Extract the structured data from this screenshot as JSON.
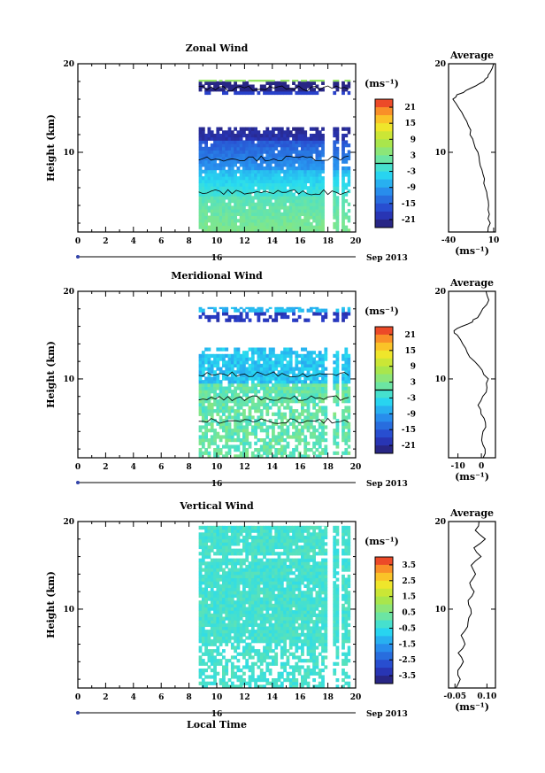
{
  "figure": {
    "date_label": "Sep 2013",
    "day_label": "16",
    "common_xlabel": "Local Time"
  },
  "chart_data": [
    {
      "type": "heatmap",
      "title": "Zonal Wind",
      "xlabel": "",
      "ylabel": "Height (km)",
      "xlim": [
        0,
        20
      ],
      "ylim": [
        1,
        20
      ],
      "xticks": [
        "0",
        "2",
        "4",
        "6",
        "8",
        "10",
        "12",
        "14",
        "16",
        "18",
        "20"
      ],
      "yticks": [
        "10",
        "20"
      ],
      "colorbar": {
        "label": "(ms⁻¹)",
        "ticks": [
          "21",
          "15",
          "9",
          "3",
          "-3",
          "-9",
          "-15",
          "-21"
        ],
        "range": [
          -24,
          24
        ],
        "contour_at": 0
      },
      "data_extent": {
        "x": [
          8.7,
          19.6
        ],
        "y": [
          1,
          18.2
        ]
      },
      "profile": {
        "title": "Average",
        "xlabel": "(ms⁻¹)",
        "xticks": [
          "-40",
          "10"
        ],
        "xlim": [
          -40,
          12
        ],
        "yticks": [
          "10",
          "20"
        ],
        "points": [
          [
            4,
            1
          ],
          [
            5,
            2
          ],
          [
            5,
            3
          ],
          [
            4,
            4
          ],
          [
            3,
            5
          ],
          [
            1,
            6
          ],
          [
            0,
            7
          ],
          [
            -2,
            8
          ],
          [
            -5,
            9
          ],
          [
            -8,
            10
          ],
          [
            -12,
            11
          ],
          [
            -15,
            12
          ],
          [
            -18,
            13
          ],
          [
            -22,
            14
          ],
          [
            -28,
            15
          ],
          [
            -36,
            16
          ],
          [
            -30,
            16.5
          ],
          [
            -20,
            17
          ],
          [
            -10,
            17.5
          ],
          [
            -2,
            18
          ],
          [
            3,
            18.5
          ],
          [
            7,
            19
          ],
          [
            10,
            20
          ]
        ]
      }
    },
    {
      "type": "heatmap",
      "title": "Meridional Wind",
      "xlabel": "",
      "ylabel": "Height (km)",
      "xlim": [
        0,
        20
      ],
      "ylim": [
        1,
        20
      ],
      "xticks": [
        "0",
        "2",
        "4",
        "6",
        "8",
        "10",
        "12",
        "14",
        "16",
        "18",
        "20"
      ],
      "yticks": [
        "10",
        "20"
      ],
      "colorbar": {
        "label": "(ms⁻¹)",
        "ticks": [
          "21",
          "15",
          "9",
          "3",
          "-3",
          "-9",
          "-15",
          "-21"
        ],
        "range": [
          -24,
          24
        ],
        "contour_at": 0
      },
      "data_extent": {
        "x": [
          8.7,
          19.6
        ],
        "y": [
          1,
          18.2
        ]
      },
      "profile": {
        "title": "Average",
        "xlabel": "(ms⁻¹)",
        "xticks": [
          "-10",
          "0"
        ],
        "xlim": [
          -14,
          6
        ],
        "yticks": [
          "10",
          "20"
        ],
        "points": [
          [
            1,
            1
          ],
          [
            2,
            2
          ],
          [
            0,
            3
          ],
          [
            1,
            4
          ],
          [
            2,
            5
          ],
          [
            0,
            6
          ],
          [
            -1,
            7
          ],
          [
            1,
            8
          ],
          [
            2,
            9
          ],
          [
            3,
            10
          ],
          [
            0,
            11
          ],
          [
            -3,
            12
          ],
          [
            -6,
            13
          ],
          [
            -8,
            14
          ],
          [
            -10,
            15
          ],
          [
            -12,
            15.5
          ],
          [
            -8,
            16
          ],
          [
            -4,
            16.5
          ],
          [
            -2,
            17
          ],
          [
            1,
            18
          ],
          [
            3,
            19
          ],
          [
            2,
            20
          ]
        ]
      }
    },
    {
      "type": "heatmap",
      "title": "Vertical Wind",
      "xlabel": "Local Time",
      "ylabel": "Height (km)",
      "xlim": [
        0,
        20
      ],
      "ylim": [
        1,
        20
      ],
      "xticks": [
        "0",
        "2",
        "4",
        "6",
        "8",
        "10",
        "12",
        "14",
        "16",
        "18",
        "20"
      ],
      "yticks": [
        "10",
        "20"
      ],
      "colorbar": {
        "label": "(ms⁻¹)",
        "ticks": [
          "3.5",
          "2.5",
          "1.5",
          "0.5",
          "-0.5",
          "-1.5",
          "-2.5",
          "-3.5"
        ],
        "range": [
          -4,
          4
        ],
        "contour_at": null
      },
      "data_extent": {
        "x": [
          8.7,
          19.6
        ],
        "y": [
          1,
          19.5
        ]
      },
      "profile": {
        "title": "Average",
        "xlabel": "(ms⁻¹)",
        "xticks": [
          "-0.05",
          "0.10"
        ],
        "xlim": [
          -0.08,
          0.14
        ],
        "yticks": [
          "10",
          "20"
        ],
        "points": [
          [
            -0.05,
            1
          ],
          [
            -0.02,
            2
          ],
          [
            -0.04,
            3
          ],
          [
            -0.01,
            4
          ],
          [
            -0.03,
            5
          ],
          [
            0.0,
            6
          ],
          [
            -0.02,
            7
          ],
          [
            0.01,
            8
          ],
          [
            0.02,
            9
          ],
          [
            0.03,
            10
          ],
          [
            0.01,
            11
          ],
          [
            0.04,
            12
          ],
          [
            0.02,
            13
          ],
          [
            0.05,
            14
          ],
          [
            0.03,
            15
          ],
          [
            0.07,
            16
          ],
          [
            0.04,
            17
          ],
          [
            0.09,
            18
          ],
          [
            0.05,
            19
          ],
          [
            0.06,
            20
          ]
        ]
      }
    }
  ]
}
